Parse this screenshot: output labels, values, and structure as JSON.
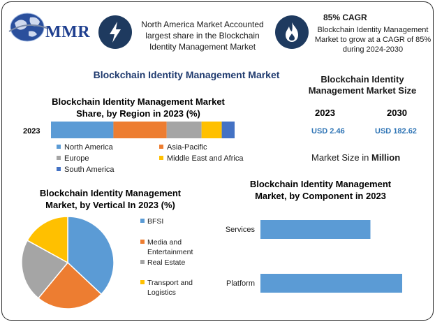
{
  "logo": {
    "text": "MMR",
    "icon": "globe-icon"
  },
  "header": {
    "region_note": "North America Market Accounted largest share in the Blockchain Identity Management Market",
    "region_note_icon": "lightning-icon",
    "cagr_title": "85% CAGR",
    "cagr_text": "Blockchain Identity Management Market to grow at a CAGR of 85% during 2024-2030",
    "cagr_icon": "flame-icon"
  },
  "main_title": "Blockchain Identity Management Market",
  "market_size": {
    "title": "Blockchain Identity Management Market Size",
    "years": [
      "2023",
      "2030"
    ],
    "values": [
      "USD 2.46",
      "USD 182.62"
    ],
    "units_prefix": "Market Size in",
    "units_strong": "Million"
  },
  "colors": {
    "blue": "#5b9bd5",
    "orange": "#ed7d31",
    "gray": "#a5a5a5",
    "yellow": "#ffc000",
    "darkblue": "#4472c4",
    "navy": "#1e3a5f",
    "title_blue": "#1f3a6e",
    "value_blue": "#2e74b5"
  },
  "chart_data": [
    {
      "type": "bar",
      "orientation": "horizontal-stacked",
      "title": "Blockchain Identity Management Market Share, by Region in 2023 (%)",
      "categories": [
        "2023"
      ],
      "series": [
        {
          "name": "North America",
          "values": [
            34
          ],
          "color": "#5b9bd5"
        },
        {
          "name": "Asia-Pacific",
          "values": [
            29
          ],
          "color": "#ed7d31"
        },
        {
          "name": "Europe",
          "values": [
            19
          ],
          "color": "#a5a5a5"
        },
        {
          "name": "Middle East and Africa",
          "values": [
            11
          ],
          "color": "#ffc000"
        },
        {
          "name": "South America",
          "values": [
            7
          ],
          "color": "#4472c4"
        }
      ],
      "legend_position": "bottom"
    },
    {
      "type": "pie",
      "title": "Blockchain Identity Management Market, by Vertical In 2023 (%)",
      "labels": [
        "BFSI",
        "Media and Entertainment",
        "Real Estate",
        "Transport and Logistics"
      ],
      "values": [
        37,
        24,
        22,
        17
      ],
      "colors": [
        "#5b9bd5",
        "#ed7d31",
        "#a5a5a5",
        "#ffc000"
      ],
      "legend_position": "right"
    },
    {
      "type": "bar",
      "orientation": "horizontal",
      "title": "Blockchain Identity Management Market, by Component in 2023",
      "categories": [
        "Services",
        "Platform"
      ],
      "values": [
        45,
        58
      ],
      "xlim": [
        0,
        60
      ],
      "color": "#5b9bd5"
    }
  ]
}
